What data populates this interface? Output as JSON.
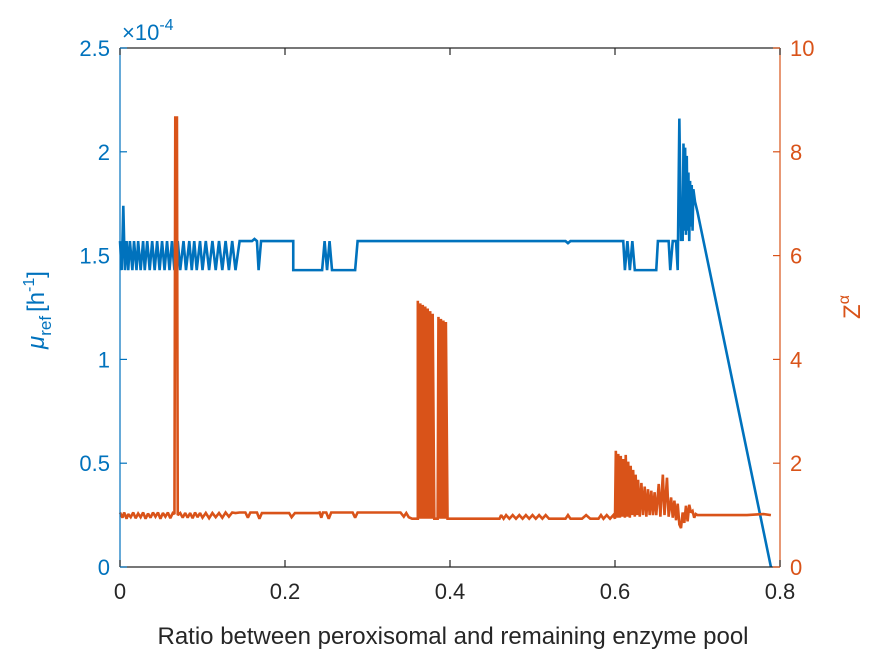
{
  "chart_data": {
    "type": "line",
    "xlabel": "Ratio between peroxisomal and remaining enzyme pool",
    "xlim": [
      0,
      0.8
    ],
    "xticks": [
      0,
      0.2,
      0.4,
      0.6,
      0.8
    ],
    "xtick_labels": [
      "0",
      "0.2",
      "0.4",
      "0.6",
      "0.8"
    ],
    "left_axis": {
      "label_main": "μ",
      "label_sub": "ref",
      "label_unit": "[h",
      "label_unit_sup": "-1",
      "label_unit_close": "]",
      "ylim": [
        0,
        2.5
      ],
      "yticks": [
        0,
        0.5,
        1,
        1.5,
        2,
        2.5
      ],
      "ytick_labels": [
        "0",
        "0.5",
        "1",
        "1.5",
        "2",
        "2.5"
      ],
      "multiplier": "×10",
      "multiplier_exp": "-4",
      "color": "#0072BD"
    },
    "right_axis": {
      "label_main": "Z",
      "label_sup": "α",
      "ylim": [
        0,
        10
      ],
      "yticks": [
        0,
        2,
        4,
        6,
        8,
        10
      ],
      "ytick_labels": [
        "0",
        "2",
        "4",
        "6",
        "8",
        "10"
      ],
      "color": "#D95319"
    },
    "series": [
      {
        "axis": "left",
        "color": "#0072BD",
        "points": [
          [
            0.0,
            1.57
          ],
          [
            0.002,
            1.43
          ],
          [
            0.003,
            1.57
          ],
          [
            0.004,
            1.74
          ],
          [
            0.005,
            1.57
          ],
          [
            0.006,
            1.43
          ],
          [
            0.008,
            1.57
          ],
          [
            0.01,
            1.43
          ],
          [
            0.012,
            1.57
          ],
          [
            0.015,
            1.43
          ],
          [
            0.017,
            1.57
          ],
          [
            0.02,
            1.43
          ],
          [
            0.022,
            1.57
          ],
          [
            0.025,
            1.43
          ],
          [
            0.028,
            1.57
          ],
          [
            0.03,
            1.43
          ],
          [
            0.033,
            1.57
          ],
          [
            0.036,
            1.43
          ],
          [
            0.039,
            1.57
          ],
          [
            0.042,
            1.43
          ],
          [
            0.045,
            1.57
          ],
          [
            0.048,
            1.43
          ],
          [
            0.051,
            1.57
          ],
          [
            0.054,
            1.43
          ],
          [
            0.057,
            1.57
          ],
          [
            0.06,
            1.43
          ],
          [
            0.063,
            1.57
          ],
          [
            0.066,
            1.43
          ],
          [
            0.07,
            1.57
          ],
          [
            0.073,
            1.43
          ],
          [
            0.077,
            1.57
          ],
          [
            0.08,
            1.43
          ],
          [
            0.084,
            1.57
          ],
          [
            0.087,
            1.43
          ],
          [
            0.09,
            1.57
          ],
          [
            0.093,
            1.43
          ],
          [
            0.097,
            1.57
          ],
          [
            0.1,
            1.43
          ],
          [
            0.104,
            1.57
          ],
          [
            0.108,
            1.43
          ],
          [
            0.112,
            1.57
          ],
          [
            0.116,
            1.43
          ],
          [
            0.12,
            1.57
          ],
          [
            0.124,
            1.43
          ],
          [
            0.128,
            1.57
          ],
          [
            0.132,
            1.43
          ],
          [
            0.136,
            1.57
          ],
          [
            0.14,
            1.43
          ],
          [
            0.145,
            1.57
          ],
          [
            0.16,
            1.57
          ],
          [
            0.163,
            1.58
          ],
          [
            0.166,
            1.57
          ],
          [
            0.168,
            1.43
          ],
          [
            0.171,
            1.57
          ],
          [
            0.21,
            1.57
          ],
          [
            0.21,
            1.43
          ],
          [
            0.245,
            1.43
          ],
          [
            0.248,
            1.57
          ],
          [
            0.251,
            1.43
          ],
          [
            0.254,
            1.57
          ],
          [
            0.257,
            1.43
          ],
          [
            0.285,
            1.43
          ],
          [
            0.288,
            1.57
          ],
          [
            0.54,
            1.57
          ],
          [
            0.543,
            1.56
          ],
          [
            0.546,
            1.57
          ],
          [
            0.61,
            1.57
          ],
          [
            0.612,
            1.43
          ],
          [
            0.615,
            1.57
          ],
          [
            0.618,
            1.43
          ],
          [
            0.621,
            1.57
          ],
          [
            0.624,
            1.43
          ],
          [
            0.65,
            1.43
          ],
          [
            0.652,
            1.57
          ],
          [
            0.665,
            1.57
          ],
          [
            0.667,
            1.43
          ],
          [
            0.67,
            1.57
          ],
          [
            0.674,
            1.57
          ],
          [
            0.676,
            1.43
          ],
          [
            0.678,
            2.16
          ],
          [
            0.68,
            1.57
          ],
          [
            0.681,
            1.72
          ],
          [
            0.682,
            1.57
          ],
          [
            0.683,
            2.04
          ],
          [
            0.684,
            1.62
          ],
          [
            0.685,
            2.02
          ],
          [
            0.686,
            1.6
          ],
          [
            0.687,
            1.98
          ],
          [
            0.688,
            1.62
          ],
          [
            0.689,
            1.9
          ],
          [
            0.69,
            1.57
          ],
          [
            0.691,
            1.86
          ],
          [
            0.692,
            1.64
          ],
          [
            0.693,
            1.84
          ],
          [
            0.694,
            1.62
          ],
          [
            0.695,
            1.82
          ],
          [
            0.697,
            1.76
          ],
          [
            0.7,
            1.71
          ],
          [
            0.789,
            0.0
          ]
        ]
      },
      {
        "axis": "right",
        "color": "#D95319",
        "points": [
          [
            0.0,
            1.05
          ],
          [
            0.003,
            0.95
          ],
          [
            0.005,
            1.05
          ],
          [
            0.008,
            0.93
          ],
          [
            0.01,
            1.02
          ],
          [
            0.013,
            0.96
          ],
          [
            0.016,
            1.05
          ],
          [
            0.019,
            0.94
          ],
          [
            0.022,
            1.03
          ],
          [
            0.025,
            0.96
          ],
          [
            0.028,
            1.05
          ],
          [
            0.031,
            0.93
          ],
          [
            0.034,
            1.03
          ],
          [
            0.037,
            0.95
          ],
          [
            0.04,
            1.05
          ],
          [
            0.043,
            0.97
          ],
          [
            0.046,
            1.05
          ],
          [
            0.049,
            0.93
          ],
          [
            0.052,
            1.04
          ],
          [
            0.055,
            0.97
          ],
          [
            0.058,
            1.05
          ],
          [
            0.061,
            0.94
          ],
          [
            0.064,
            1.04
          ],
          [
            0.066,
            1.02
          ],
          [
            0.067,
            8.66
          ],
          [
            0.069,
            8.66
          ],
          [
            0.07,
            1.0
          ],
          [
            0.073,
            1.04
          ],
          [
            0.076,
            0.95
          ],
          [
            0.079,
            1.04
          ],
          [
            0.082,
            0.95
          ],
          [
            0.085,
            1.04
          ],
          [
            0.088,
            0.94
          ],
          [
            0.091,
            1.05
          ],
          [
            0.094,
            0.96
          ],
          [
            0.097,
            1.04
          ],
          [
            0.1,
            0.95
          ],
          [
            0.104,
            1.04
          ],
          [
            0.108,
            0.94
          ],
          [
            0.112,
            1.04
          ],
          [
            0.116,
            0.96
          ],
          [
            0.12,
            1.04
          ],
          [
            0.124,
            0.95
          ],
          [
            0.128,
            1.05
          ],
          [
            0.132,
            0.97
          ],
          [
            0.136,
            1.05
          ],
          [
            0.14,
            1.04
          ],
          [
            0.145,
            1.05
          ],
          [
            0.152,
            1.05
          ],
          [
            0.155,
            0.95
          ],
          [
            0.158,
            1.05
          ],
          [
            0.166,
            1.05
          ],
          [
            0.169,
            0.93
          ],
          [
            0.172,
            1.04
          ],
          [
            0.205,
            1.04
          ],
          [
            0.208,
            0.96
          ],
          [
            0.212,
            1.04
          ],
          [
            0.24,
            1.04
          ],
          [
            0.242,
            1.05
          ],
          [
            0.244,
            0.95
          ],
          [
            0.246,
            1.05
          ],
          [
            0.25,
            1.05
          ],
          [
            0.253,
            0.93
          ],
          [
            0.256,
            1.05
          ],
          [
            0.282,
            1.05
          ],
          [
            0.285,
            0.95
          ],
          [
            0.288,
            1.05
          ],
          [
            0.34,
            1.05
          ],
          [
            0.344,
            0.97
          ],
          [
            0.347,
            1.04
          ],
          [
            0.35,
            0.96
          ],
          [
            0.354,
            0.93
          ],
          [
            0.361,
            0.93
          ],
          [
            0.361,
            5.13
          ],
          [
            0.363,
            0.93
          ],
          [
            0.364,
            5.08
          ],
          [
            0.366,
            0.93
          ],
          [
            0.367,
            5.05
          ],
          [
            0.369,
            0.93
          ],
          [
            0.37,
            5.02
          ],
          [
            0.372,
            0.93
          ],
          [
            0.373,
            4.98
          ],
          [
            0.375,
            0.93
          ],
          [
            0.376,
            4.93
          ],
          [
            0.378,
            0.93
          ],
          [
            0.379,
            4.88
          ],
          [
            0.381,
            0.93
          ],
          [
            0.382,
            0.93
          ],
          [
            0.385,
            0.93
          ],
          [
            0.386,
            4.82
          ],
          [
            0.388,
            0.93
          ],
          [
            0.389,
            4.78
          ],
          [
            0.391,
            0.93
          ],
          [
            0.392,
            4.75
          ],
          [
            0.394,
            0.93
          ],
          [
            0.395,
            4.72
          ],
          [
            0.397,
            0.93
          ],
          [
            0.398,
            0.93
          ],
          [
            0.46,
            0.93
          ],
          [
            0.462,
            1.0
          ],
          [
            0.465,
            0.93
          ],
          [
            0.468,
            1.0
          ],
          [
            0.472,
            0.93
          ],
          [
            0.476,
            1.0
          ],
          [
            0.48,
            0.93
          ],
          [
            0.484,
            1.0
          ],
          [
            0.488,
            0.93
          ],
          [
            0.492,
            1.0
          ],
          [
            0.496,
            0.93
          ],
          [
            0.5,
            1.0
          ],
          [
            0.504,
            0.93
          ],
          [
            0.508,
            1.0
          ],
          [
            0.512,
            0.93
          ],
          [
            0.516,
            1.0
          ],
          [
            0.52,
            0.93
          ],
          [
            0.535,
            0.93
          ],
          [
            0.54,
            0.93
          ],
          [
            0.543,
            1.0
          ],
          [
            0.546,
            0.93
          ],
          [
            0.56,
            0.93
          ],
          [
            0.565,
            1.0
          ],
          [
            0.57,
            0.93
          ],
          [
            0.58,
            0.93
          ],
          [
            0.583,
            1.0
          ],
          [
            0.586,
            0.93
          ],
          [
            0.59,
            1.0
          ],
          [
            0.594,
            0.93
          ],
          [
            0.598,
            1.0
          ],
          [
            0.6,
            0.93
          ],
          [
            0.601,
            2.24
          ],
          [
            0.603,
            0.95
          ],
          [
            0.604,
            2.18
          ],
          [
            0.606,
            0.95
          ],
          [
            0.607,
            2.14
          ],
          [
            0.609,
            0.97
          ],
          [
            0.61,
            2.08
          ],
          [
            0.612,
            0.95
          ],
          [
            0.613,
            2.16
          ],
          [
            0.615,
            0.97
          ],
          [
            0.616,
            2.03
          ],
          [
            0.618,
            0.95
          ],
          [
            0.619,
            1.95
          ],
          [
            0.621,
            1.0
          ],
          [
            0.622,
            1.87
          ],
          [
            0.624,
            0.97
          ],
          [
            0.625,
            1.78
          ],
          [
            0.627,
            1.0
          ],
          [
            0.628,
            1.68
          ],
          [
            0.63,
            0.97
          ],
          [
            0.632,
            1.62
          ],
          [
            0.634,
            1.0
          ],
          [
            0.636,
            1.55
          ],
          [
            0.638,
            0.97
          ],
          [
            0.64,
            1.5
          ],
          [
            0.642,
            1.0
          ],
          [
            0.644,
            1.47
          ],
          [
            0.646,
            1.0
          ],
          [
            0.648,
            1.44
          ],
          [
            0.65,
            1.0
          ],
          [
            0.653,
            1.6
          ],
          [
            0.655,
            0.97
          ],
          [
            0.658,
            1.78
          ],
          [
            0.66,
            1.0
          ],
          [
            0.663,
            1.72
          ],
          [
            0.665,
            0.97
          ],
          [
            0.668,
            1.34
          ],
          [
            0.67,
            0.95
          ],
          [
            0.672,
            1.28
          ],
          [
            0.674,
            0.9
          ],
          [
            0.676,
            1.22
          ],
          [
            0.678,
            0.82
          ],
          [
            0.68,
            0.75
          ],
          [
            0.682,
            1.05
          ],
          [
            0.684,
            0.85
          ],
          [
            0.686,
            1.18
          ],
          [
            0.688,
            0.88
          ],
          [
            0.69,
            1.2
          ],
          [
            0.692,
            1.05
          ],
          [
            0.694,
            1.08
          ],
          [
            0.696,
            0.95
          ],
          [
            0.698,
            1.02
          ],
          [
            0.7,
            1.0
          ],
          [
            0.74,
            1.0
          ],
          [
            0.76,
            1.0
          ],
          [
            0.78,
            1.02
          ],
          [
            0.789,
            1.0
          ]
        ]
      }
    ]
  }
}
